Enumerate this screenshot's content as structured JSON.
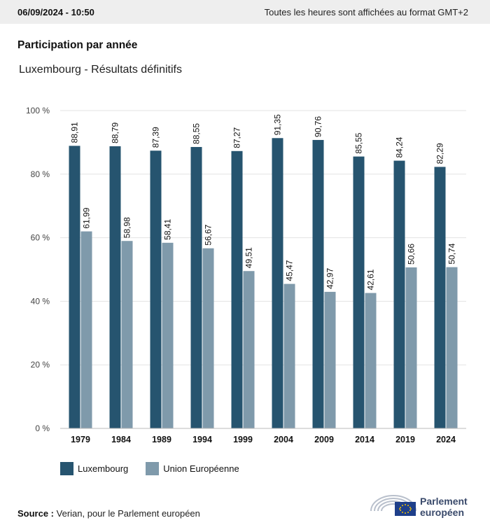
{
  "header": {
    "timestamp": "06/09/2024 - 10:50",
    "timezone_note": "Toutes les heures sont affichées au format GMT+2"
  },
  "chart_data": {
    "type": "bar",
    "title": "Participation par année",
    "subtitle": "Luxembourg - Résultats définitifs",
    "categories": [
      "1979",
      "1984",
      "1989",
      "1994",
      "1999",
      "2004",
      "2009",
      "2014",
      "2019",
      "2024"
    ],
    "series": [
      {
        "name": "Luxembourg",
        "color": "#26546f",
        "values": [
          88.91,
          88.79,
          87.39,
          88.55,
          87.27,
          91.35,
          90.76,
          85.55,
          84.24,
          82.29
        ],
        "labels": [
          "88,91",
          "88,79",
          "87,39",
          "88,55",
          "87,27",
          "91,35",
          "90,76",
          "85,55",
          "84,24",
          "82,29"
        ]
      },
      {
        "name": "Union Européenne",
        "color": "#7f9aab",
        "values": [
          61.99,
          58.98,
          58.41,
          56.67,
          49.51,
          45.47,
          42.97,
          42.61,
          50.66,
          50.74
        ],
        "labels": [
          "61,99",
          "58,98",
          "58,41",
          "56,67",
          "49,51",
          "45,47",
          "42,97",
          "42,61",
          "50,66",
          "50,74"
        ]
      }
    ],
    "ylim": [
      0,
      100
    ],
    "yticks": [
      "0 %",
      "20 %",
      "40 %",
      "60 %",
      "80 %",
      "100 %"
    ],
    "grid": true,
    "legend": "bottom-left"
  },
  "footer": {
    "source_label": "Source :",
    "source_text": "Verian, pour le Parlement européen",
    "logo_line1": "Parlement",
    "logo_line2": "européen"
  }
}
